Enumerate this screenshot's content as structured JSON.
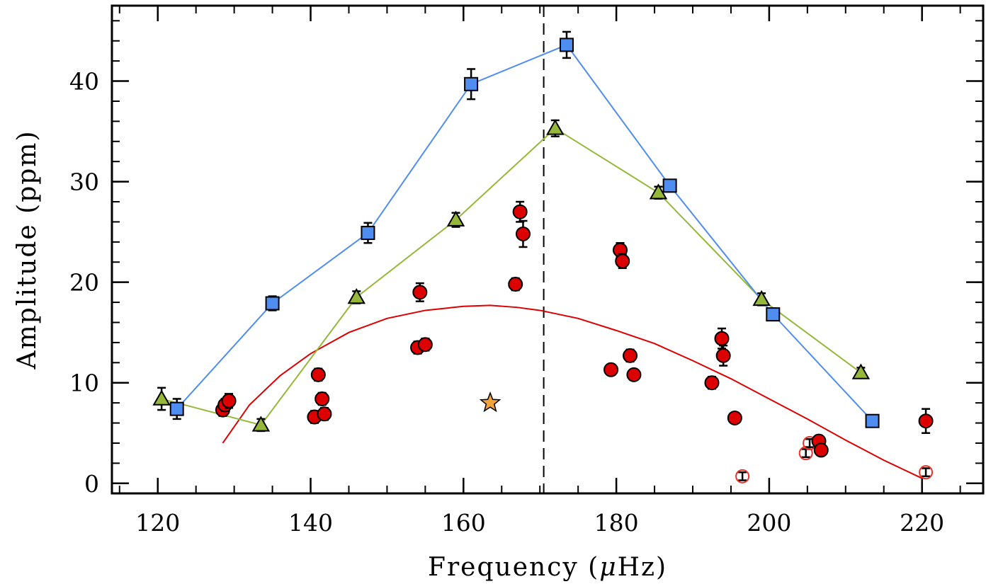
{
  "chart_data": {
    "type": "scatter",
    "xlabel_main": "Frequency (",
    "xlabel_mu": "μ",
    "xlabel_unit": "Hz)",
    "ylabel": "Amplitude (ppm)",
    "xlim": [
      114,
      228
    ],
    "ylim": [
      -1,
      47.5
    ],
    "x_ticks": [
      120,
      140,
      160,
      180,
      200,
      220
    ],
    "y_ticks": [
      0,
      10,
      20,
      30,
      40
    ],
    "x_minor_step": 5,
    "y_minor_step": 2,
    "vline_x": 170.5,
    "colors": {
      "blue": "#4f8ef0",
      "green": "#96b83a",
      "red": "#dd0000",
      "star": "#f2a33a",
      "open_circle": "#e8322a"
    },
    "series": [
      {
        "name": "squares",
        "marker": "square",
        "connected": true,
        "points": [
          {
            "x": 122.5,
            "y": 7.4,
            "err": 1.0
          },
          {
            "x": 135.0,
            "y": 17.9,
            "err": 0.7
          },
          {
            "x": 147.5,
            "y": 24.9,
            "err": 1.0
          },
          {
            "x": 161.0,
            "y": 39.7,
            "err": 1.5
          },
          {
            "x": 173.5,
            "y": 43.6,
            "err": 1.3
          },
          {
            "x": 187.0,
            "y": 29.6,
            "err": 0.6
          },
          {
            "x": 200.5,
            "y": 16.8,
            "err": 0.6
          },
          {
            "x": 213.5,
            "y": 6.2,
            "err": 0.5
          }
        ]
      },
      {
        "name": "triangles",
        "marker": "triangle",
        "connected": true,
        "points": [
          {
            "x": 120.5,
            "y": 8.4,
            "err": 1.1
          },
          {
            "x": 133.5,
            "y": 5.8,
            "err": 0.6
          },
          {
            "x": 146.0,
            "y": 18.5,
            "err": 0.6
          },
          {
            "x": 159.0,
            "y": 26.2,
            "err": 0.7
          },
          {
            "x": 172.0,
            "y": 35.3,
            "err": 0.8
          },
          {
            "x": 185.5,
            "y": 28.9,
            "err": 0.6
          },
          {
            "x": 199.0,
            "y": 18.3,
            "err": 0.6
          },
          {
            "x": 212.0,
            "y": 11.0,
            "err": 0.5
          }
        ]
      },
      {
        "name": "circles",
        "marker": "circle",
        "connected": false,
        "points": [
          {
            "x": 128.5,
            "y": 7.3,
            "err": 0.6
          },
          {
            "x": 128.8,
            "y": 7.8,
            "err": 0.6
          },
          {
            "x": 129.3,
            "y": 8.2,
            "err": 0.7
          },
          {
            "x": 140.5,
            "y": 6.6,
            "err": 0.6
          },
          {
            "x": 141.0,
            "y": 10.8,
            "err": 0.6
          },
          {
            "x": 141.5,
            "y": 8.4,
            "err": 0.6
          },
          {
            "x": 141.8,
            "y": 6.9,
            "err": 0.6
          },
          {
            "x": 154.0,
            "y": 13.5,
            "err": 0.6
          },
          {
            "x": 154.3,
            "y": 19.0,
            "err": 0.9
          },
          {
            "x": 155.0,
            "y": 13.8,
            "err": 0.6
          },
          {
            "x": 166.8,
            "y": 19.8,
            "err": 0.6
          },
          {
            "x": 167.4,
            "y": 27.0,
            "err": 1.0
          },
          {
            "x": 167.8,
            "y": 24.8,
            "err": 1.3
          },
          {
            "x": 179.3,
            "y": 11.3,
            "err": 0.5
          },
          {
            "x": 180.5,
            "y": 23.2,
            "err": 0.7
          },
          {
            "x": 180.8,
            "y": 22.1,
            "err": 0.7
          },
          {
            "x": 181.8,
            "y": 12.7,
            "err": 0.6
          },
          {
            "x": 182.3,
            "y": 10.8,
            "err": 0.5
          },
          {
            "x": 192.5,
            "y": 10.0,
            "err": 0.6
          },
          {
            "x": 193.8,
            "y": 14.4,
            "err": 1.0
          },
          {
            "x": 194.0,
            "y": 12.7,
            "err": 1.0
          },
          {
            "x": 195.5,
            "y": 6.5,
            "err": 0.5
          },
          {
            "x": 206.5,
            "y": 4.2,
            "err": 0.5
          },
          {
            "x": 206.8,
            "y": 3.3,
            "err": 0.5
          },
          {
            "x": 220.5,
            "y": 6.2,
            "err": 1.2
          }
        ]
      },
      {
        "name": "open_circles",
        "marker": "open-circle",
        "connected": false,
        "points": [
          {
            "x": 196.5,
            "y": 0.7,
            "err": 0.4
          },
          {
            "x": 204.8,
            "y": 3.0,
            "err": 0.4
          },
          {
            "x": 205.3,
            "y": 4.0,
            "err": 0.4
          },
          {
            "x": 220.5,
            "y": 1.1,
            "err": 0.4
          }
        ]
      },
      {
        "name": "star",
        "marker": "star",
        "connected": false,
        "points": [
          {
            "x": 163.5,
            "y": 8.0
          }
        ]
      },
      {
        "name": "fit",
        "marker": "line",
        "connected": true,
        "x": [
          128.5,
          132,
          136,
          140,
          145,
          150,
          155,
          160,
          163.5,
          167,
          170,
          175,
          180,
          185,
          190,
          195,
          200,
          205,
          210,
          215,
          220
        ],
        "values": [
          4.0,
          7.8,
          10.7,
          12.9,
          15.0,
          16.4,
          17.2,
          17.6,
          17.7,
          17.5,
          17.2,
          16.4,
          15.2,
          13.9,
          12.2,
          10.4,
          8.4,
          6.4,
          4.3,
          2.3,
          0.5
        ]
      }
    ]
  }
}
